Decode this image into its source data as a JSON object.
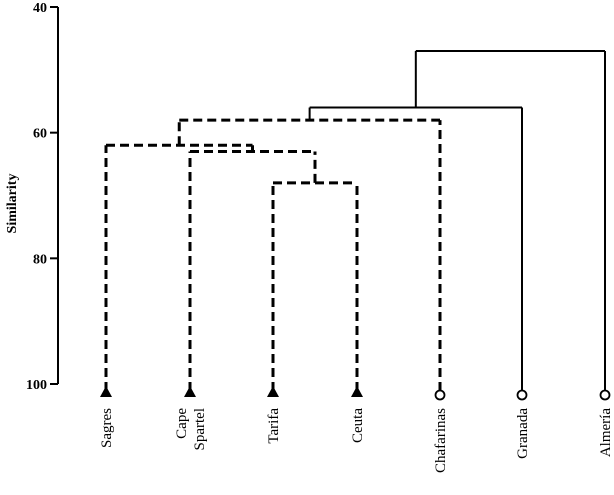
{
  "chart_data": {
    "type": "dendrogram",
    "ylabel": "Similarity",
    "ylim": [
      40,
      100
    ],
    "yticks": [
      40,
      60,
      80,
      100
    ],
    "leaves": [
      {
        "label": [
          "Sagres"
        ],
        "marker": "triangle"
      },
      {
        "label": [
          "Cape",
          "Spartel"
        ],
        "marker": "triangle"
      },
      {
        "label": [
          "Tarifa"
        ],
        "marker": "triangle"
      },
      {
        "label": [
          "Ceuta"
        ],
        "marker": "triangle"
      },
      {
        "label": [
          "Chafarinas"
        ],
        "marker": "circle"
      },
      {
        "label": [
          "Granada"
        ],
        "marker": "circle"
      },
      {
        "label": [
          "Almería"
        ],
        "marker": "circle"
      }
    ],
    "merges": [
      {
        "left": 2,
        "right": 3,
        "height": 68,
        "style": "dashed"
      },
      {
        "left": 1,
        "right": "m0",
        "height": 63,
        "style": "dashed"
      },
      {
        "left": 0,
        "right": "m1",
        "height": 62,
        "style": "dashed"
      },
      {
        "left": "m2",
        "right": 4,
        "height": 58,
        "style": "dashed"
      },
      {
        "left": "m3",
        "right": 5,
        "height": 56,
        "style": "solid"
      },
      {
        "left": "m4",
        "right": 6,
        "height": 47,
        "style": "solid"
      }
    ]
  }
}
